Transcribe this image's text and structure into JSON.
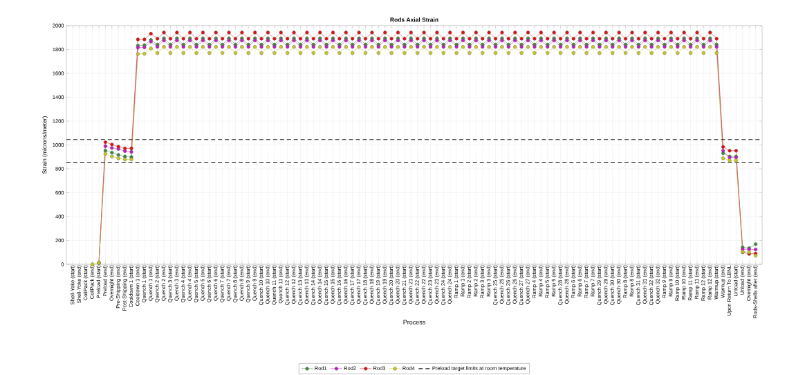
{
  "chart_data": {
    "type": "line",
    "title": "Rods Axial Strain",
    "xlabel": "Process",
    "ylabel": "Strain (microns/meter)",
    "categories": [
      "Shell-Yoke (start)",
      "Shell-Yoke (end)",
      "CoilPack (start)",
      "CoilPack (end)",
      "Preload (start)",
      "Preload (end)",
      "Overnight (end)",
      "Pre-Shipping (end)",
      "Post-Shipping (end)",
      "Cooldown 1 (start)",
      "Cooldown 1 (end)",
      "Quench 1 (start)",
      "Quench 1 (end)",
      "Quench 2 (start)",
      "Quench 2 (end)",
      "Quench 3 (start)",
      "Quench 3 (end)",
      "Quench 4 (start)",
      "Quench 4 (end)",
      "Quench 5 (start)",
      "Quench 5 (end)",
      "Quench 6 (start)",
      "Quench 6 (end)",
      "Quench 7 (start)",
      "Quench 7 (end)",
      "Quench 8 (start)",
      "Quench 8 (end)",
      "Quench 9 (start)",
      "Quench 9 (end)",
      "Quench 10 (start)",
      "Quench 10 (end)",
      "Quench 11 (start)",
      "Quench 11 (end)",
      "Quench 12 (start)",
      "Quench 12 (end)",
      "Quench 13 (start)",
      "Quench 13 (end)",
      "Quench 14 (start)",
      "Quench 14 (end)",
      "Quench 15 (start)",
      "Quench 15 (end)",
      "Quench 16 (start)",
      "Quench 16 (end)",
      "Quench 17 (start)",
      "Quench 17 (end)",
      "Quench 18 (start)",
      "Quench 18 (end)",
      "Quench 19 (start)",
      "Quench 19 (end)",
      "Quench 20 (start)",
      "Quench 20 (end)",
      "Quench 21 (start)",
      "Quench 21 (end)",
      "Quench 22 (start)",
      "Quench 22 (end)",
      "Quench 23 (start)",
      "Quench 23 (end)",
      "Quench 24 (start)",
      "Quench 24 (end)",
      "Ramp 1 (start)",
      "Ramp 1 (end)",
      "Ramp 2 (start)",
      "Ramp 2 (end)",
      "Ramp 3 (start)",
      "Ramp 3 (end)",
      "Quench 25 (start)",
      "Quench 25 (end)",
      "Quench 26 (start)",
      "Quench 26 (end)",
      "Quench 27 (start)",
      "Quench 27 (end)",
      "Ramp 4 (start)",
      "Ramp 4 (end)",
      "Ramp 5 (start)",
      "Ramp 5 (end)",
      "Quench 28 (start)",
      "Quench 28 (end)",
      "Ramp 6 (start)",
      "Ramp 6 (end)",
      "Ramp 7 (start)",
      "Ramp 7 (end)",
      "Quench 29 (start)",
      "Quench 29 (end)",
      "Quench 30 (start)",
      "Quench 30 (end)",
      "Ramp 8 (start)",
      "Ramp 8 (end)",
      "Quench 31 (start)",
      "Quench 31 (end)",
      "Quench 32 (start)",
      "Quench 32 (end)",
      "Ramp 9 (start)",
      "Ramp 9 (end)",
      "Ramp 10 (start)",
      "Ramp 10 (end)",
      "Ramp 11 (start)",
      "Ramp 11 (end)",
      "Ramp 12 (start)",
      "Ramp 12 (end)",
      "Warmup (start)",
      "Warmup (end)",
      "Upon Return To LBNL",
      "Unload (start)",
      "Unload (end)",
      "Overnight (end)",
      "Rods-Shells after (end)"
    ],
    "series": [
      {
        "name": "Rod1",
        "color": "#3a8a3a",
        "values": [
          null,
          null,
          null,
          null,
          12,
          952,
          936,
          917,
          903,
          899,
          1832,
          1836,
          1880,
          1841,
          1894,
          1841,
          1894,
          1841,
          1894,
          1841,
          1894,
          1841,
          1894,
          1841,
          1894,
          1841,
          1894,
          1841,
          1894,
          1841,
          1894,
          1841,
          1894,
          1841,
          1894,
          1841,
          1894,
          1841,
          1894,
          1841,
          1894,
          1841,
          1894,
          1841,
          1894,
          1841,
          1894,
          1841,
          1894,
          1841,
          1894,
          1841,
          1894,
          1841,
          1894,
          1841,
          1894,
          1841,
          1894,
          1841,
          1894,
          1841,
          1894,
          1841,
          1894,
          1841,
          1894,
          1841,
          1894,
          1841,
          1894,
          1841,
          1894,
          1841,
          1894,
          1841,
          1894,
          1841,
          1894,
          1841,
          1894,
          1841,
          1894,
          1841,
          1894,
          1841,
          1894,
          1841,
          1894,
          1841,
          1894,
          1841,
          1894,
          1841,
          1894,
          1841,
          1894,
          1841,
          1894,
          1841,
          930,
          903,
          903,
          142,
          136,
          169
        ]
      },
      {
        "name": "Rod2",
        "color": "#c21bc2",
        "values": [
          null,
          null,
          null,
          null,
          12,
          990,
          975,
          967,
          948,
          942,
          1816,
          1818,
          1866,
          1822,
          1876,
          1822,
          1876,
          1822,
          1876,
          1822,
          1876,
          1822,
          1876,
          1822,
          1876,
          1822,
          1876,
          1822,
          1876,
          1822,
          1876,
          1822,
          1876,
          1822,
          1876,
          1822,
          1876,
          1822,
          1876,
          1822,
          1876,
          1822,
          1876,
          1822,
          1876,
          1822,
          1876,
          1822,
          1876,
          1822,
          1876,
          1822,
          1876,
          1822,
          1876,
          1822,
          1876,
          1822,
          1876,
          1822,
          1876,
          1822,
          1876,
          1822,
          1876,
          1822,
          1876,
          1822,
          1876,
          1822,
          1876,
          1822,
          1876,
          1822,
          1876,
          1822,
          1876,
          1822,
          1876,
          1822,
          1876,
          1822,
          1876,
          1822,
          1876,
          1822,
          1876,
          1822,
          1876,
          1822,
          1876,
          1822,
          1876,
          1822,
          1876,
          1822,
          1876,
          1822,
          1876,
          1822,
          952,
          895,
          895,
          126,
          126,
          124
        ]
      },
      {
        "name": "Rod3",
        "color": "#e01010",
        "values": [
          null,
          null,
          null,
          null,
          12,
          1023,
          1004,
          986,
          971,
          971,
          1884,
          1884,
          1932,
          1890,
          1942,
          1890,
          1942,
          1890,
          1942,
          1890,
          1942,
          1890,
          1942,
          1890,
          1942,
          1890,
          1942,
          1890,
          1942,
          1890,
          1942,
          1890,
          1942,
          1890,
          1942,
          1890,
          1942,
          1890,
          1942,
          1890,
          1942,
          1890,
          1942,
          1890,
          1942,
          1890,
          1942,
          1890,
          1942,
          1890,
          1942,
          1890,
          1942,
          1890,
          1942,
          1890,
          1942,
          1890,
          1942,
          1890,
          1942,
          1890,
          1942,
          1890,
          1942,
          1890,
          1942,
          1890,
          1942,
          1890,
          1942,
          1890,
          1942,
          1890,
          1942,
          1890,
          1942,
          1890,
          1942,
          1890,
          1942,
          1890,
          1942,
          1890,
          1942,
          1890,
          1942,
          1890,
          1942,
          1890,
          1942,
          1890,
          1942,
          1890,
          1942,
          1890,
          1942,
          1890,
          1942,
          1890,
          984,
          952,
          952,
          101,
          87,
          91
        ]
      },
      {
        "name": "Rod4",
        "color": "#c8c820",
        "values": [
          null,
          null,
          null,
          0,
          12,
          926,
          903,
          888,
          878,
          878,
          1762,
          1764,
          1808,
          1770,
          1822,
          1770,
          1822,
          1770,
          1822,
          1770,
          1822,
          1770,
          1822,
          1770,
          1822,
          1770,
          1822,
          1770,
          1822,
          1770,
          1822,
          1770,
          1822,
          1770,
          1822,
          1770,
          1822,
          1770,
          1822,
          1770,
          1822,
          1770,
          1822,
          1770,
          1822,
          1770,
          1822,
          1770,
          1822,
          1770,
          1822,
          1770,
          1822,
          1770,
          1822,
          1770,
          1822,
          1770,
          1822,
          1770,
          1822,
          1770,
          1822,
          1770,
          1822,
          1770,
          1822,
          1770,
          1822,
          1770,
          1822,
          1770,
          1822,
          1770,
          1822,
          1770,
          1822,
          1770,
          1822,
          1770,
          1822,
          1770,
          1822,
          1770,
          1822,
          1770,
          1822,
          1770,
          1822,
          1770,
          1822,
          1770,
          1822,
          1770,
          1822,
          1770,
          1822,
          1770,
          1822,
          1770,
          888,
          870,
          870,
          105,
          101,
          72
        ]
      }
    ],
    "ref_lines": [
      {
        "axis": "y",
        "value": 1045,
        "label": "Preload target limits at room temperature",
        "color": "#222222",
        "line_style": "dashed"
      },
      {
        "axis": "y",
        "value": 855,
        "color": "#222222",
        "line_style": "dashed"
      }
    ],
    "ylim": [
      0,
      2000
    ],
    "yticks": [
      0,
      200,
      400,
      600,
      800,
      1000,
      1200,
      1400,
      1600,
      1800,
      2000
    ],
    "grid": true,
    "legend": "bottom",
    "marker": "circle"
  }
}
